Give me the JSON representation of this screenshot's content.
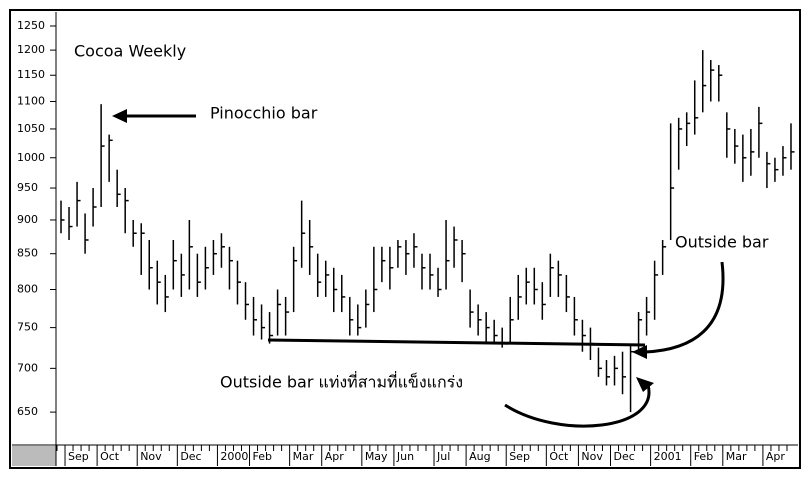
{
  "chart_data": {
    "type": "ohlc",
    "title": "Cocoa Weekly",
    "annotations": [
      "Pinocchio bar",
      "Outside bar",
      "Outside bar แท่งที่สามที่แข็งแกร่ง"
    ],
    "categories": [
      null,
      "Sep",
      null,
      null,
      null,
      "Oct",
      null,
      null,
      null,
      null,
      "Nov",
      null,
      null,
      null,
      null,
      "Dec",
      null,
      null,
      null,
      null,
      "2000",
      null,
      null,
      null,
      "Feb",
      null,
      null,
      null,
      null,
      "Mar",
      null,
      null,
      null,
      "Apr",
      null,
      null,
      null,
      null,
      "May",
      null,
      null,
      null,
      "Jun",
      null,
      null,
      null,
      null,
      "Jul",
      null,
      null,
      null,
      "Aug",
      null,
      null,
      null,
      null,
      "Sep",
      null,
      null,
      null,
      null,
      "Oct",
      null,
      null,
      null,
      "Nov",
      null,
      null,
      null,
      "Dec",
      null,
      null,
      null,
      null,
      "2001",
      null,
      null,
      null,
      null,
      "Feb",
      null,
      null,
      null,
      "Mar",
      null,
      null,
      null,
      null,
      "Apr",
      null,
      null,
      null
    ],
    "high": [
      930,
      920,
      960,
      910,
      950,
      1095,
      1040,
      980,
      950,
      900,
      895,
      870,
      840,
      820,
      870,
      850,
      900,
      850,
      860,
      870,
      880,
      860,
      840,
      810,
      790,
      780,
      770,
      800,
      790,
      860,
      930,
      900,
      850,
      840,
      830,
      820,
      790,
      780,
      800,
      860,
      860,
      860,
      870,
      870,
      880,
      850,
      850,
      830,
      900,
      890,
      870,
      800,
      780,
      770,
      760,
      750,
      790,
      820,
      830,
      830,
      810,
      850,
      840,
      820,
      790,
      760,
      750,
      725,
      710,
      715,
      720,
      730,
      770,
      790,
      840,
      870,
      1060,
      1070,
      1080,
      1140,
      1200,
      1180,
      1170,
      1080,
      1050,
      1040,
      1050,
      1090,
      1010,
      1000,
      1020,
      1060
    ],
    "low": [
      880,
      870,
      890,
      850,
      890,
      920,
      960,
      920,
      880,
      860,
      820,
      800,
      780,
      770,
      800,
      790,
      800,
      790,
      800,
      820,
      830,
      800,
      780,
      760,
      740,
      735,
      730,
      740,
      740,
      770,
      830,
      820,
      790,
      790,
      770,
      770,
      740,
      740,
      750,
      770,
      810,
      800,
      830,
      820,
      830,
      800,
      800,
      790,
      800,
      830,
      810,
      750,
      740,
      730,
      730,
      725,
      730,
      760,
      780,
      780,
      760,
      790,
      790,
      770,
      740,
      720,
      710,
      690,
      680,
      680,
      670,
      650,
      720,
      740,
      760,
      820,
      870,
      980,
      1020,
      1040,
      1080,
      1100,
      1100,
      1000,
      990,
      960,
      970,
      1000,
      950,
      960,
      970,
      980
    ],
    "close": [
      900,
      890,
      930,
      870,
      920,
      1020,
      1030,
      940,
      930,
      880,
      880,
      830,
      810,
      790,
      840,
      820,
      860,
      810,
      830,
      850,
      860,
      840,
      810,
      780,
      760,
      750,
      740,
      780,
      770,
      840,
      880,
      860,
      810,
      820,
      800,
      790,
      760,
      750,
      780,
      800,
      840,
      830,
      860,
      850,
      860,
      830,
      820,
      800,
      840,
      870,
      850,
      770,
      760,
      750,
      740,
      730,
      760,
      790,
      810,
      800,
      780,
      830,
      820,
      790,
      760,
      740,
      730,
      700,
      690,
      700,
      690,
      720,
      760,
      770,
      820,
      860,
      950,
      1050,
      1060,
      1070,
      1130,
      1160,
      1150,
      1050,
      1020,
      1000,
      1010,
      1060,
      990,
      980,
      1000,
      1010
    ],
    "color": "#000000",
    "log_scale": true,
    "ylim": [
      620,
      1280
    ],
    "yticks": [
      650,
      700,
      750,
      800,
      850,
      900,
      950,
      1000,
      1050,
      1100,
      1150,
      1200,
      1250
    ]
  }
}
